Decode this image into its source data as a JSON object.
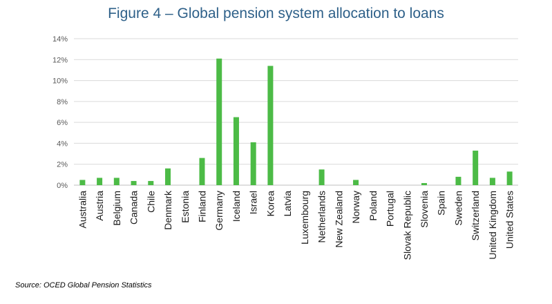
{
  "chart_data": {
    "type": "bar",
    "title": "Figure 4 – Global pension system allocation to loans",
    "xlabel": "",
    "ylabel": "",
    "ylim": [
      0,
      14
    ],
    "yticks": [
      "0%",
      "2%",
      "4%",
      "6%",
      "8%",
      "10%",
      "12%",
      "14%"
    ],
    "ytick_values": [
      0,
      2,
      4,
      6,
      8,
      10,
      12,
      14
    ],
    "grid": true,
    "legend": "none",
    "bar_color": "#4cbb46",
    "categories": [
      "Australia",
      "Austria",
      "Belgium",
      "Canada",
      "Chile",
      "Denmark",
      "Estonia",
      "Finland",
      "Germany",
      "Iceland",
      "Israel",
      "Korea",
      "Latvia",
      "Luxembourg",
      "Netherlands",
      "New Zealand",
      "Norway",
      "Poland",
      "Portugal",
      "Slovak Republic",
      "Slovenia",
      "Spain",
      "Sweden",
      "Switzerland",
      "United Kingdom",
      "United States"
    ],
    "values": [
      0.5,
      0.7,
      0.7,
      0.4,
      0.4,
      1.6,
      0,
      2.6,
      12.1,
      6.5,
      4.1,
      11.4,
      0,
      0,
      1.5,
      0,
      0.5,
      0,
      0,
      0,
      0.2,
      0,
      0.8,
      3.3,
      0.7,
      1.3
    ]
  },
  "source": "Source: OCED Global Pension Statistics"
}
